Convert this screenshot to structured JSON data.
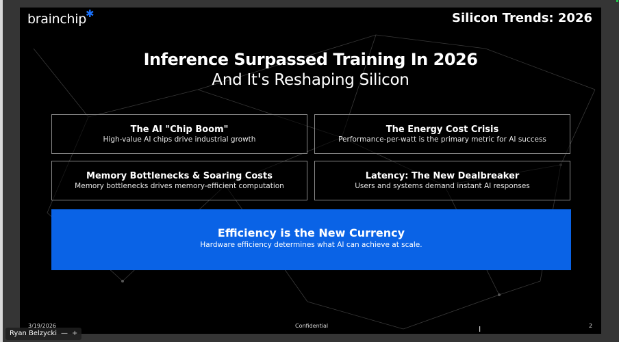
{
  "slide": {
    "logo": "brainchip",
    "deck_title": "Silicon Trends: 2026",
    "headline": "Inference Surpassed Training In 2026",
    "subheadline": "And It's Reshaping Silicon",
    "cards": [
      {
        "title": "The AI \"Chip Boom\"",
        "subtitle": "High-value AI chips drive industrial growth"
      },
      {
        "title": "The Energy Cost Crisis",
        "subtitle": "Performance-per-watt is the primary metric for AI success"
      },
      {
        "title": "Memory Bottlenecks & Soaring Costs",
        "subtitle": "Memory bottlenecks drives memory-efficient computation"
      },
      {
        "title": "Latency: The New Dealbreaker",
        "subtitle": "Users and systems demand instant AI responses"
      }
    ],
    "banner": {
      "title": "Efficiency is the New Currency",
      "subtitle": "Hardware efficiency determines what AI can achieve at scale."
    },
    "footer": {
      "date": "3/19/2026",
      "label": "Confidential",
      "page": "2"
    }
  },
  "participant": {
    "name": "Ryan Belzycki",
    "minimize": "—",
    "expand": "+"
  },
  "colors": {
    "accent": "#0a63e6",
    "logo_star": "#1a73ff",
    "background": "#000000"
  }
}
